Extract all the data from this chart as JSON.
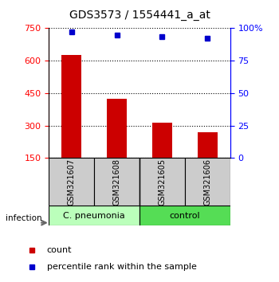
{
  "title": "GDS3573 / 1554441_a_at",
  "samples": [
    "GSM321607",
    "GSM321608",
    "GSM321605",
    "GSM321606"
  ],
  "counts": [
    625,
    425,
    312,
    268
  ],
  "percentiles": [
    97,
    95,
    93.5,
    92
  ],
  "ylim_left": [
    150,
    750
  ],
  "ylim_right": [
    0,
    100
  ],
  "yticks_left": [
    150,
    300,
    450,
    600,
    750
  ],
  "yticks_right": [
    0,
    25,
    50,
    75,
    100
  ],
  "bar_color": "#cc0000",
  "dot_color": "#0000cc",
  "group_labels": [
    "C. pneumonia",
    "control"
  ],
  "group_colors": [
    "#bbffbb",
    "#55dd55"
  ],
  "infection_label": "infection",
  "legend_count": "count",
  "legend_pct": "percentile rank within the sample",
  "bar_bottom": 150,
  "title_fontsize": 10,
  "tick_fontsize": 8,
  "sample_fontsize": 7,
  "group_fontsize": 8,
  "legend_fontsize": 8
}
